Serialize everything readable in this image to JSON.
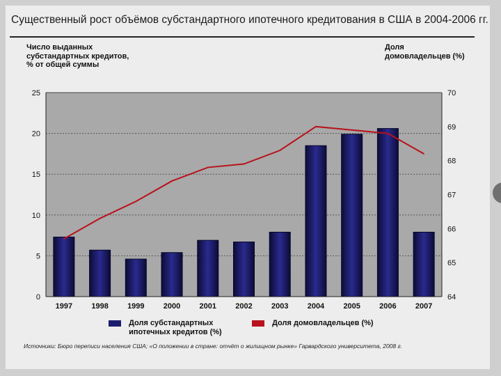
{
  "title": "Существенный рост объёмов субстандартного ипотечного кредитования в США в 2004-2006 гг.",
  "left_axis_label": "Число выданных субстандартных кредитов, % от общей суммы",
  "right_axis_label": "Доля домовладельцев (%)",
  "legend": {
    "bars": "Доля субстандартных ипотечных кредитов (%)",
    "line": "Доля домовладельцев (%)"
  },
  "source": "Источники: Бюро переписи населения США; «О положении в стране: отчёт о жилищном рынке» Гарвардского университета, 2008 г.",
  "colors": {
    "bar": "#1c1c6e",
    "line": "#b8121c",
    "plot_bg": "#a9a9a9"
  },
  "chart_data": {
    "type": "bar",
    "categories": [
      "1997",
      "1998",
      "1999",
      "2000",
      "2001",
      "2002",
      "2003",
      "2004",
      "2005",
      "2006",
      "2007"
    ],
    "series": [
      {
        "name": "Доля субстандартных ипотечных кредитов (%)",
        "type": "bar",
        "axis": "left",
        "values": [
          7.3,
          5.7,
          4.6,
          5.4,
          6.9,
          6.7,
          7.9,
          18.5,
          19.9,
          20.6,
          7.9
        ]
      },
      {
        "name": "Доля домовладельцев (%)",
        "type": "line",
        "axis": "right",
        "values": [
          65.7,
          66.3,
          66.8,
          67.4,
          67.8,
          67.9,
          68.3,
          69.0,
          68.9,
          68.8,
          68.2
        ]
      }
    ],
    "ylim_left": [
      0,
      25
    ],
    "yticks_left": [
      "0",
      "5",
      "10",
      "15",
      "20",
      "25"
    ],
    "ylim_right": [
      64,
      70
    ],
    "yticks_right": [
      "64",
      "65",
      "66",
      "67",
      "68",
      "69",
      "70"
    ],
    "grid": true,
    "legend_position": "bottom"
  }
}
